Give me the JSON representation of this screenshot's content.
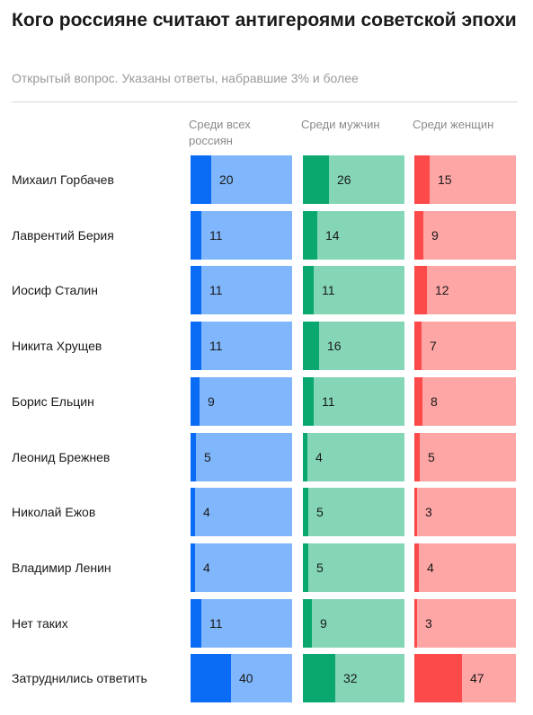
{
  "title": "Кого россияне считают антигероями советской эпохи",
  "subtitle": "Открытый вопрос. Указаны ответы, набравшие 3% и более",
  "chart_data": {
    "type": "bar",
    "categories": [
      "Михаил Горбачев",
      "Лаврентий Берия",
      "Иосиф Сталин",
      "Никита Хрущев",
      "Борис Ельцин",
      "Леонид Брежнев",
      "Николай Ежов",
      "Владимир Ленин",
      "Нет таких",
      "Затруднились ответить"
    ],
    "series": [
      {
        "name": "Среди всех россиян",
        "values": [
          20,
          11,
          11,
          11,
          9,
          5,
          4,
          4,
          11,
          40
        ],
        "fill": "#0a6cf5",
        "track": "#80b6fb"
      },
      {
        "name": "Среди мужчин",
        "values": [
          26,
          14,
          11,
          16,
          11,
          4,
          5,
          5,
          9,
          32
        ],
        "fill": "#0aa86e",
        "track": "#84d6b6"
      },
      {
        "name": "Среди женщин",
        "values": [
          15,
          9,
          12,
          7,
          8,
          5,
          3,
          4,
          3,
          47
        ],
        "fill": "#fc4a4a",
        "track": "#fea5a5"
      }
    ],
    "ylim": [
      0,
      100
    ]
  }
}
